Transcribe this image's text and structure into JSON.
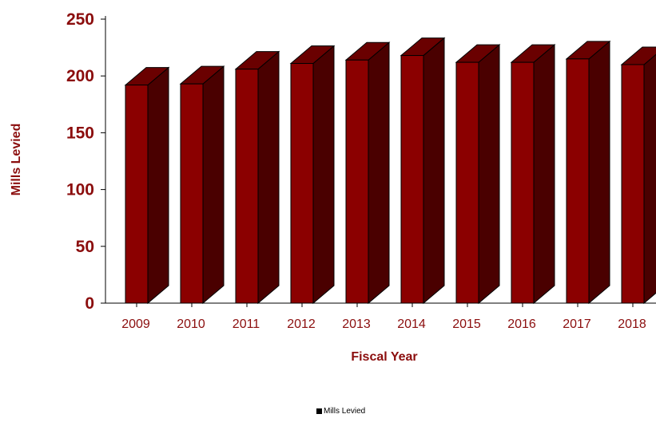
{
  "chart_data": {
    "type": "bar",
    "categories": [
      "2009",
      "2010",
      "2011",
      "2012",
      "2013",
      "2014",
      "2015",
      "2016",
      "2017",
      "2018"
    ],
    "series": [
      {
        "name": "Mills Levied",
        "values": [
          192,
          193,
          206,
          211,
          214,
          218,
          212,
          212,
          215,
          210
        ]
      }
    ],
    "xlabel": "Fiscal Year",
    "ylabel": "Mills Levied",
    "ylim": [
      0,
      250
    ],
    "yticks": [
      "0",
      "50",
      "100",
      "150",
      "200",
      "250"
    ],
    "grid": false,
    "legend": "bottom-center",
    "colors": {
      "front": "#8b0000",
      "top": "#6a0000",
      "side": "#4a0000",
      "outline": "#000000",
      "text": "#8b0d0d"
    }
  }
}
